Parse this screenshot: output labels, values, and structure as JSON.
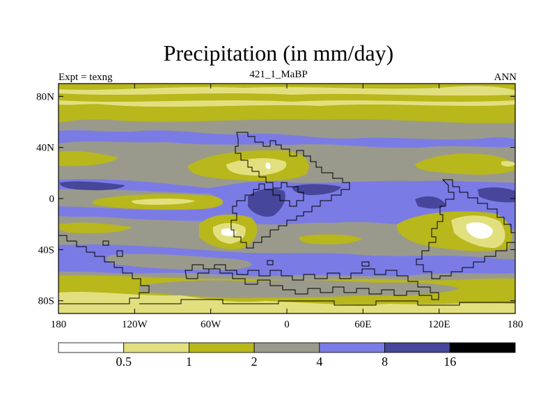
{
  "title": "Precipitation (in mm/day)",
  "subtitle_left": "Expt = texng",
  "subtitle_center": "421_1_MaBP",
  "subtitle_right": "ANN",
  "x_axis": {
    "ticks": [
      {
        "value": -180,
        "label": "180"
      },
      {
        "value": -120,
        "label": "120W"
      },
      {
        "value": -60,
        "label": "60W"
      },
      {
        "value": 0,
        "label": "0"
      },
      {
        "value": 60,
        "label": "60E"
      },
      {
        "value": 120,
        "label": "120E"
      },
      {
        "value": 180,
        "label": "180"
      }
    ]
  },
  "y_axis": {
    "ticks": [
      {
        "value": 80,
        "label": "80N"
      },
      {
        "value": 40,
        "label": "40N"
      },
      {
        "value": 0,
        "label": "0"
      },
      {
        "value": -40,
        "label": "40S"
      },
      {
        "value": -80,
        "label": "80S"
      }
    ]
  },
  "colorbar": {
    "colors": [
      "#ffffff",
      "#e2e07e",
      "#b8b71c",
      "#9a9a8c",
      "#7b7be6",
      "#46479a",
      "#000000"
    ],
    "labels": [
      "0.5",
      "1",
      "2",
      "4",
      "8",
      "16"
    ]
  },
  "palette": {
    "v_low": "#ffffff",
    "low": "#e2e07e",
    "mid_low": "#b8b71c",
    "mid": "#9a9a8c",
    "mid_high": "#7b7be6",
    "high": "#46479a"
  }
}
